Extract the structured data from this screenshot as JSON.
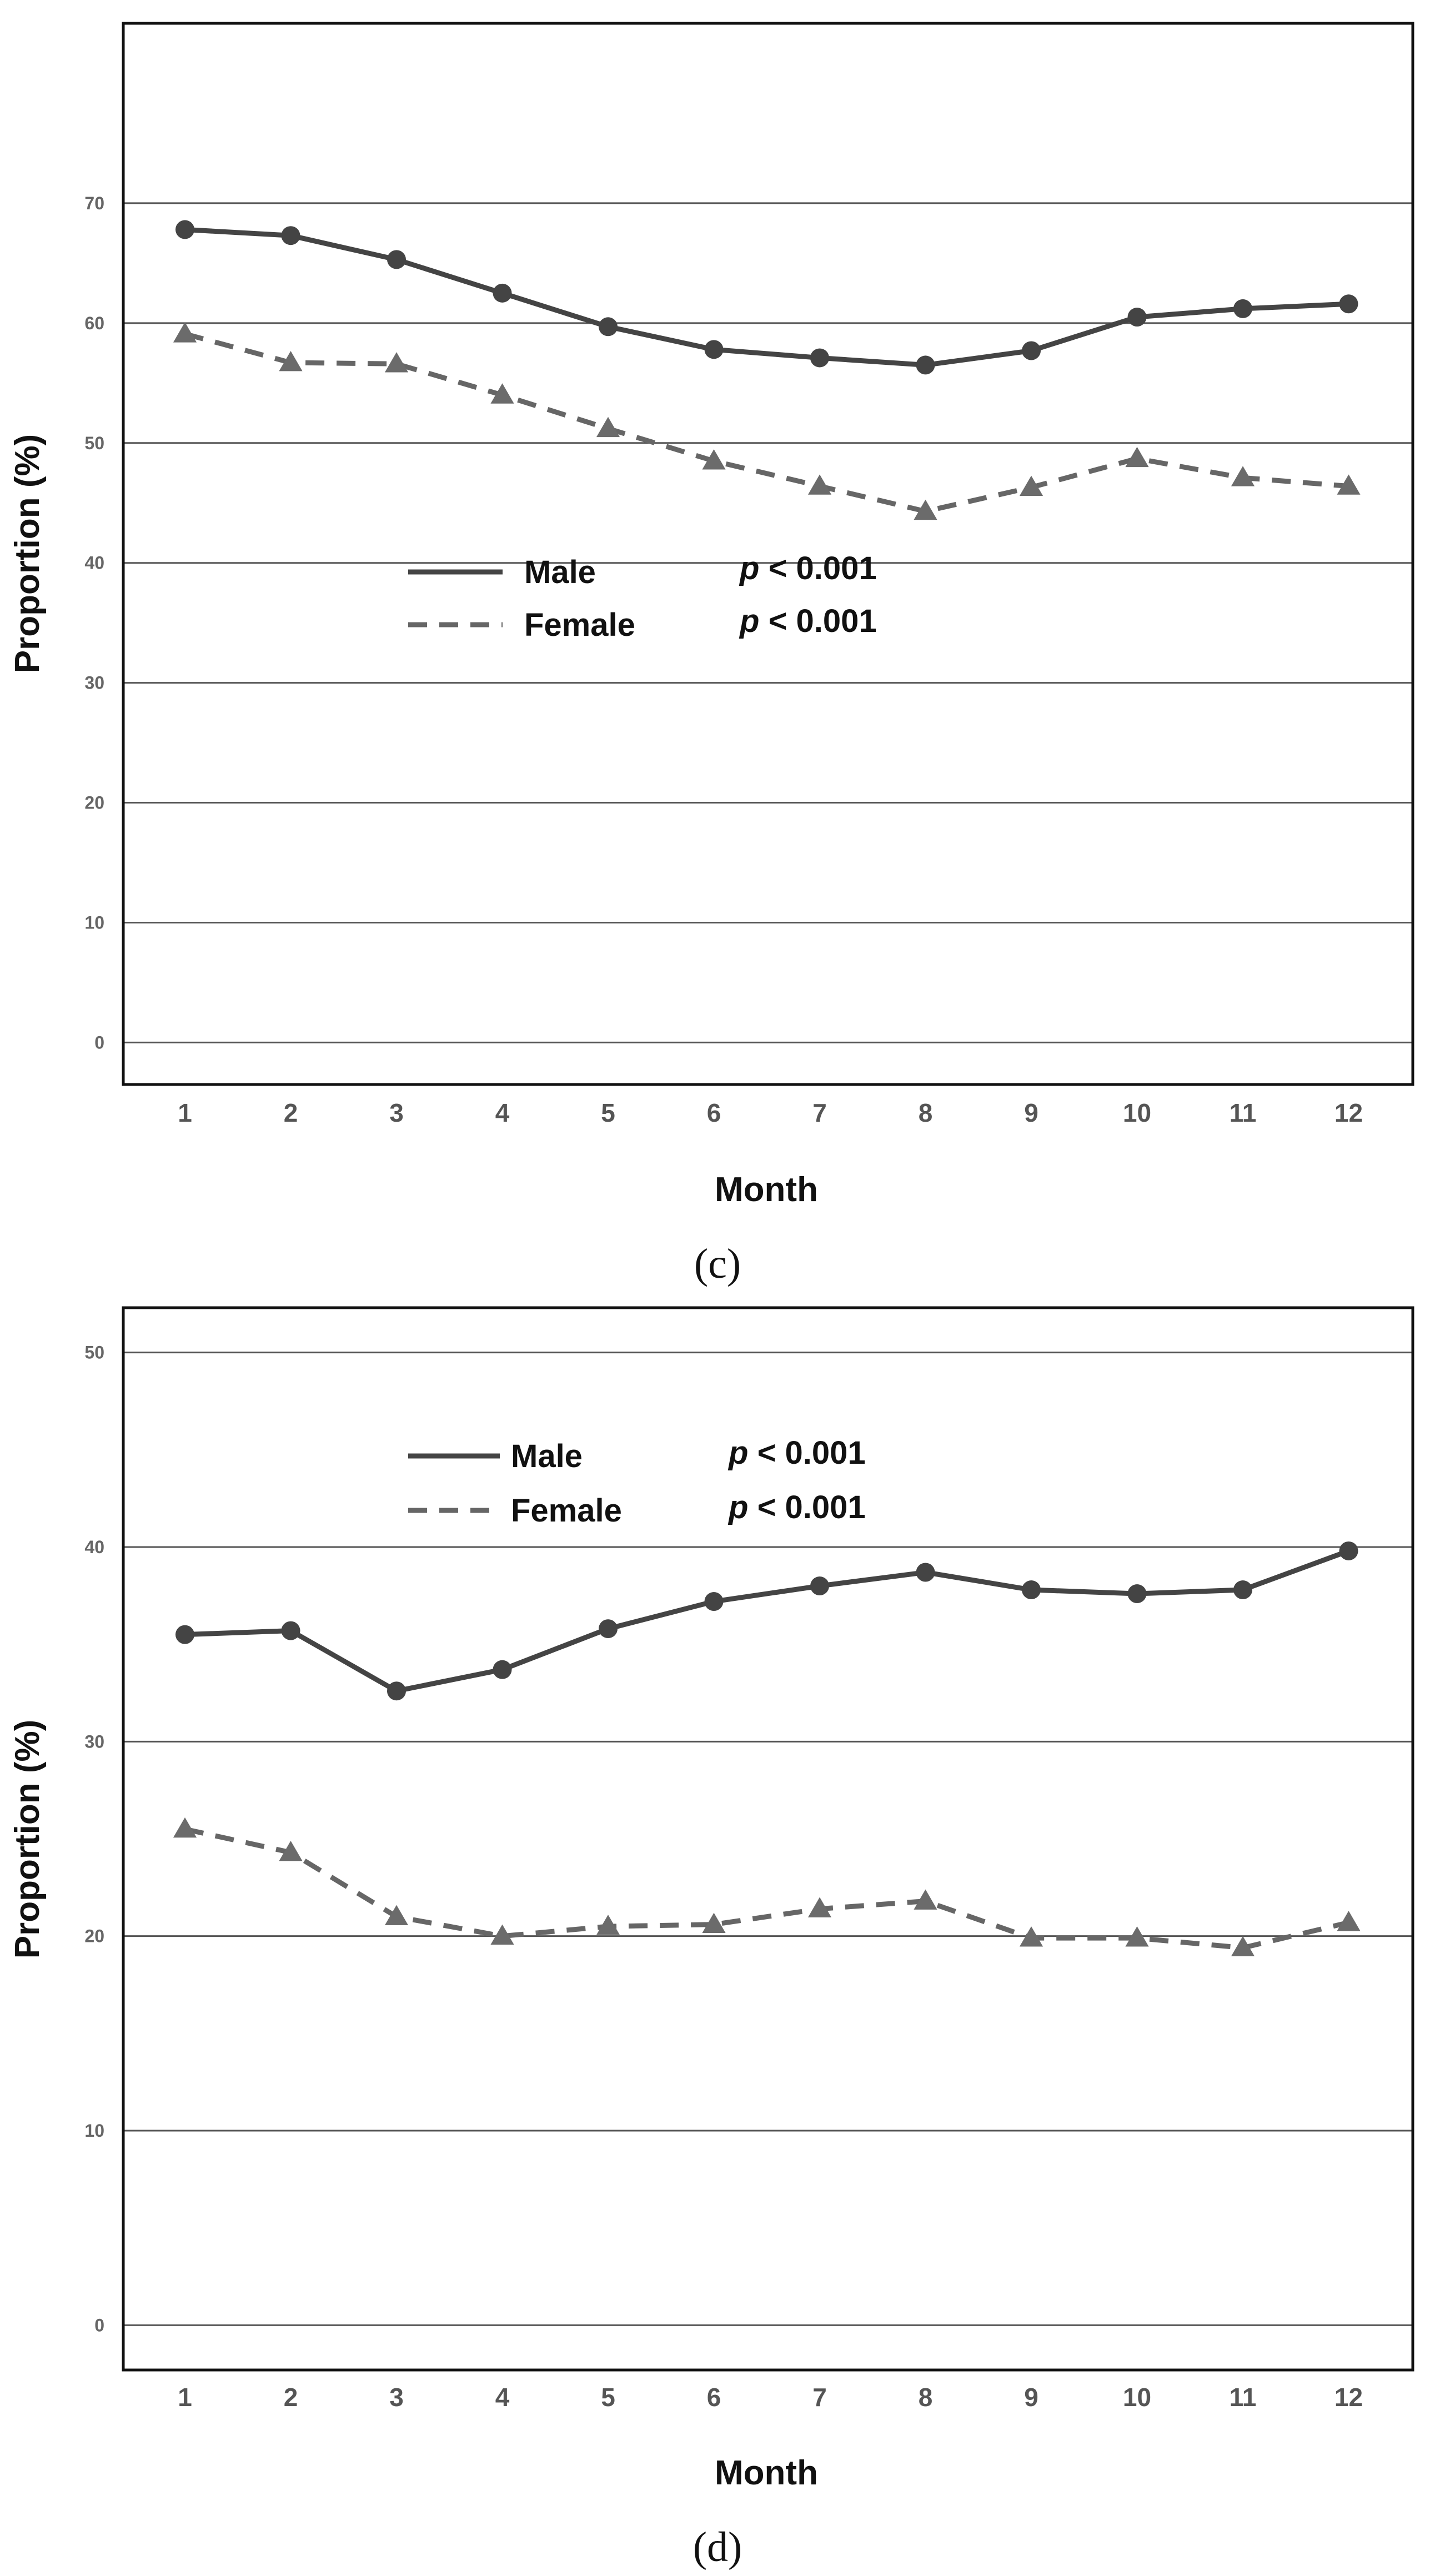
{
  "chart_data": [
    {
      "type": "line",
      "caption": "(c)",
      "xlabel": "Month",
      "ylabel": "Proportion (%)",
      "categories": [
        "1",
        "2",
        "3",
        "4",
        "5",
        "6",
        "7",
        "8",
        "9",
        "10",
        "11",
        "12"
      ],
      "yticks": [
        "0",
        "10",
        "20",
        "30",
        "40",
        "50",
        "60",
        "70"
      ],
      "ylim": [
        -3.5,
        85
      ],
      "grid": true,
      "legend_position": "center-left",
      "series": [
        {
          "name": "Male",
          "p_prefix": "p",
          "p_text": "< 0.001",
          "style": "solid",
          "marker": "circle",
          "color": "#444444",
          "values": [
            67.8,
            67.3,
            65.3,
            62.5,
            59.7,
            57.8,
            57.1,
            56.5,
            57.7,
            60.5,
            61.2,
            61.6
          ]
        },
        {
          "name": "Female",
          "p_prefix": "p",
          "p_text": "< 0.001",
          "style": "dashed",
          "marker": "triangle",
          "color": "#666666",
          "values": [
            59.1,
            56.7,
            56.6,
            54.0,
            51.2,
            48.5,
            46.4,
            44.3,
            46.3,
            48.7,
            47.1,
            46.4
          ]
        }
      ]
    },
    {
      "type": "line",
      "caption": "(d)",
      "xlabel": "Month",
      "ylabel": "Proportion (%)",
      "categories": [
        "1",
        "2",
        "3",
        "4",
        "5",
        "6",
        "7",
        "8",
        "9",
        "10",
        "11",
        "12"
      ],
      "yticks": [
        "0",
        "10",
        "20",
        "30",
        "40",
        "50"
      ],
      "ylim": [
        -2.3,
        52.3
      ],
      "grid": true,
      "legend_position": "top-left",
      "series": [
        {
          "name": "Male",
          "p_prefix": "p",
          "p_text": "< 0.001",
          "style": "solid",
          "marker": "circle",
          "color": "#444444",
          "values": [
            35.5,
            35.7,
            32.6,
            33.7,
            35.8,
            37.2,
            38.0,
            38.7,
            37.8,
            37.6,
            37.8,
            39.8
          ]
        },
        {
          "name": "Female",
          "p_prefix": "p",
          "p_text": "< 0.001",
          "style": "dashed",
          "marker": "triangle",
          "color": "#666666",
          "values": [
            25.5,
            24.3,
            21.0,
            20.0,
            20.5,
            20.6,
            21.4,
            21.8,
            19.9,
            19.9,
            19.4,
            20.7
          ]
        }
      ]
    }
  ]
}
